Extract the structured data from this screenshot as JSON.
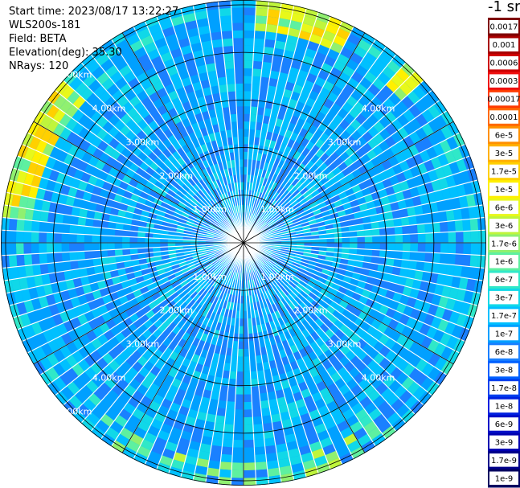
{
  "header": {
    "start_time": "Start time: 2023/08/17 13:22:27",
    "instrument": "WLS200s-181",
    "field": "Field: BETA",
    "elevation": "Elevation(deg): 35.30",
    "nrays": "NRays: 120"
  },
  "colorbar": {
    "unit_label": "-1 sr",
    "levels": [
      {
        "label": "0.0017",
        "color": "#7f0000"
      },
      {
        "label": "0.001",
        "color": "#a80000"
      },
      {
        "label": "0.0006",
        "color": "#cc0000"
      },
      {
        "label": "0.0003",
        "color": "#ee1010"
      },
      {
        "label": "0.00017",
        "color": "#ff3a00"
      },
      {
        "label": "0.0001",
        "color": "#ff6a00"
      },
      {
        "label": "6e-5",
        "color": "#ff9000"
      },
      {
        "label": "3e-5",
        "color": "#ffb000"
      },
      {
        "label": "1.7e-5",
        "color": "#ffd000"
      },
      {
        "label": "1e-5",
        "color": "#fff000"
      },
      {
        "label": "6e-6",
        "color": "#e8f81a"
      },
      {
        "label": "3e-6",
        "color": "#bff53c"
      },
      {
        "label": "1.7e-6",
        "color": "#90f070"
      },
      {
        "label": "1e-6",
        "color": "#5ef0a0"
      },
      {
        "label": "6e-7",
        "color": "#30e8c8"
      },
      {
        "label": "3e-7",
        "color": "#10d8e8"
      },
      {
        "label": "1.7e-7",
        "color": "#00c0ff"
      },
      {
        "label": "1e-7",
        "color": "#00a0ff"
      },
      {
        "label": "6e-8",
        "color": "#1a80ff"
      },
      {
        "label": "3e-8",
        "color": "#0060ff"
      },
      {
        "label": "1.7e-8",
        "color": "#0040ee"
      },
      {
        "label": "1e-8",
        "color": "#0020e0"
      },
      {
        "label": "6e-9",
        "color": "#0010c8"
      },
      {
        "label": "3e-9",
        "color": "#0000b0"
      },
      {
        "label": "1.7e-9",
        "color": "#00008a"
      },
      {
        "label": "1e-9",
        "color": "#000060"
      }
    ]
  },
  "chart_data": {
    "type": "heatmap",
    "projection": "polar (PPI scan)",
    "field": "BETA",
    "scale": "log",
    "n_rays": 120,
    "range_rings_km": [
      1,
      2,
      3,
      4,
      5
    ],
    "range_ring_labels": [
      "1.00km",
      "2.00km",
      "3.00km",
      "4.00km",
      "5.00km"
    ],
    "max_range_km": 5.1,
    "spoke_step_deg": 30,
    "description_of_values": "background mostly 1e-7 to 6e-8; higher (1e-6 to 3e-5) at far range near 290-300 deg and 10-20 deg azimuth"
  }
}
